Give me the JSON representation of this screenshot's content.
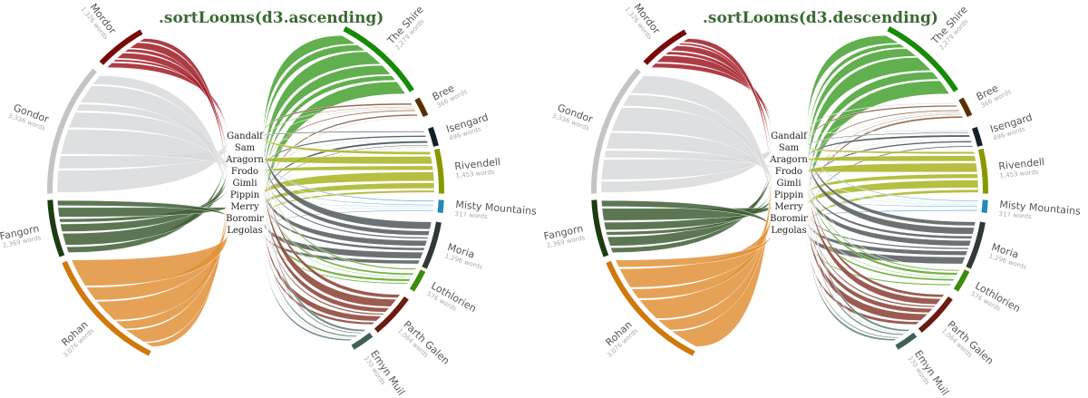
{
  "panels": [
    {
      "title": ".sortLooms(d3.ascending)"
    },
    {
      "title": ".sortLooms(d3.descending)"
    }
  ],
  "characters": [
    "Gandalf",
    "Sam",
    "Aragorn",
    "Frodo",
    "Gimli",
    "Pippin",
    "Merry",
    "Boromir",
    "Legolas"
  ],
  "locations_left": [
    {
      "name": "Mordor",
      "words": "1,326 words",
      "color": "#a01a24",
      "outer": "#7a0a0a"
    },
    {
      "name": "Gondor",
      "words": "3,336 words",
      "color": "#d8d9da",
      "outer": "#c3c5c5"
    },
    {
      "name": "Fangorn",
      "words": "2,369 words",
      "color": "#3f5e35",
      "outer": "#1e3c14"
    },
    {
      "name": "Rohan",
      "words": "3,076 words",
      "color": "#e0923a",
      "outer": "#d0780c"
    }
  ],
  "locations_right": [
    {
      "name": "The Shire",
      "words": "2,279 words",
      "color": "#45a12f",
      "outer": "#178a08"
    },
    {
      "name": "Bree",
      "words": "366 words",
      "color": "#7d5432",
      "outer": "#5a3000"
    },
    {
      "name": "Isengard",
      "words": "496 words",
      "color": "#3a4a50",
      "outer": "#142228"
    },
    {
      "name": "Rivendell",
      "words": "1,453 words",
      "color": "#a9b420",
      "outer": "#8a9800"
    },
    {
      "name": "Misty Mountains",
      "words": "317 words",
      "color": "#4aa0c8",
      "outer": "#2388b4"
    },
    {
      "name": "Moria",
      "words": "1,296 words",
      "color": "#52595b",
      "outer": "#30383a"
    },
    {
      "name": "Lothlorien",
      "words": "576 words",
      "color": "#5ba624",
      "outer": "#3a8c0a"
    },
    {
      "name": "Parth Galen",
      "words": "1,064 words",
      "color": "#8a3e32",
      "outer": "#6a1c10"
    },
    {
      "name": "Emyn Muil",
      "words": "370 words",
      "color": "#5e7b74",
      "outer": "#3b6058"
    }
  ]
}
